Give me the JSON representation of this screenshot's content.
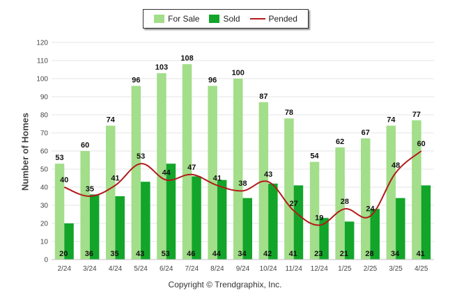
{
  "legend": {
    "for_sale": "For Sale",
    "sold": "Sold",
    "pended": "Pended"
  },
  "footer": {
    "copyright": "Copyright © Trendgraphix, Inc."
  },
  "colors": {
    "for_sale": "#a3de8a",
    "sold": "#12a52a",
    "pended": "#b21a1a"
  },
  "chart_data": {
    "type": "bar",
    "ylabel": "Number of Homes",
    "ylim": [
      0,
      120
    ],
    "yticks": [
      0,
      10,
      20,
      30,
      40,
      50,
      60,
      70,
      80,
      90,
      100,
      110,
      120
    ],
    "grid": true,
    "legend_position": "top",
    "categories": [
      "2/24",
      "3/24",
      "4/24",
      "5/24",
      "6/24",
      "7/24",
      "8/24",
      "9/24",
      "10/24",
      "11/24",
      "12/24",
      "1/25",
      "2/25",
      "3/25",
      "4/25"
    ],
    "series": [
      {
        "name": "For Sale",
        "kind": "bar",
        "values": [
          53,
          60,
          74,
          96,
          103,
          108,
          96,
          100,
          87,
          78,
          54,
          62,
          67,
          74,
          77
        ]
      },
      {
        "name": "Sold",
        "kind": "bar",
        "values": [
          20,
          36,
          35,
          43,
          53,
          46,
          44,
          34,
          42,
          41,
          23,
          21,
          28,
          34,
          41
        ]
      },
      {
        "name": "Pended",
        "kind": "line",
        "values": [
          40,
          35,
          41,
          53,
          44,
          47,
          41,
          38,
          43,
          27,
          19,
          28,
          24,
          48,
          60
        ]
      }
    ]
  }
}
